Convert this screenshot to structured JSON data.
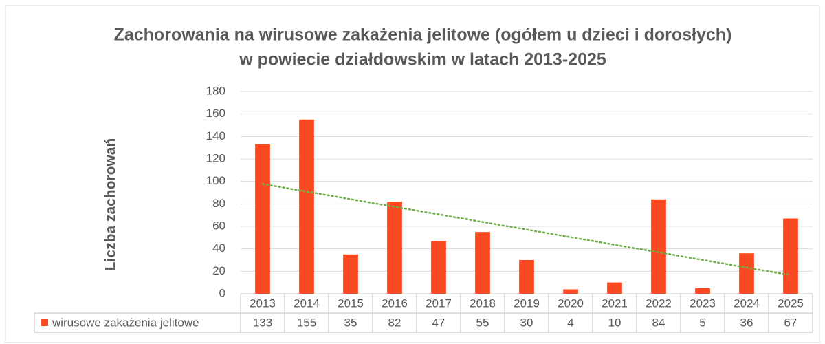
{
  "chart_data": {
    "type": "bar",
    "title": [
      "Zachorowania na wirusowe zakażenia jelitowe (ogółem u dzieci i dorosłych)",
      "w powiecie działdowskim w latach 2013-2025"
    ],
    "y_label": "Liczba zachorowań",
    "categories": [
      "2013",
      "2014",
      "2015",
      "2016",
      "2017",
      "2018",
      "2019",
      "2020",
      "2021",
      "2022",
      "2023",
      "2024",
      "2025"
    ],
    "series": [
      {
        "name": "wirusowe zakażenia jelitowe",
        "color": "#fb4a22",
        "values": [
          133,
          155,
          35,
          82,
          47,
          55,
          30,
          4,
          10,
          84,
          5,
          36,
          67
        ]
      }
    ],
    "ylim": [
      0,
      180
    ],
    "yticks": [
      0,
      20,
      40,
      60,
      80,
      100,
      120,
      140,
      160,
      180
    ],
    "grid": true,
    "trendline": {
      "type": "linear",
      "color": "#70ad47"
    }
  }
}
